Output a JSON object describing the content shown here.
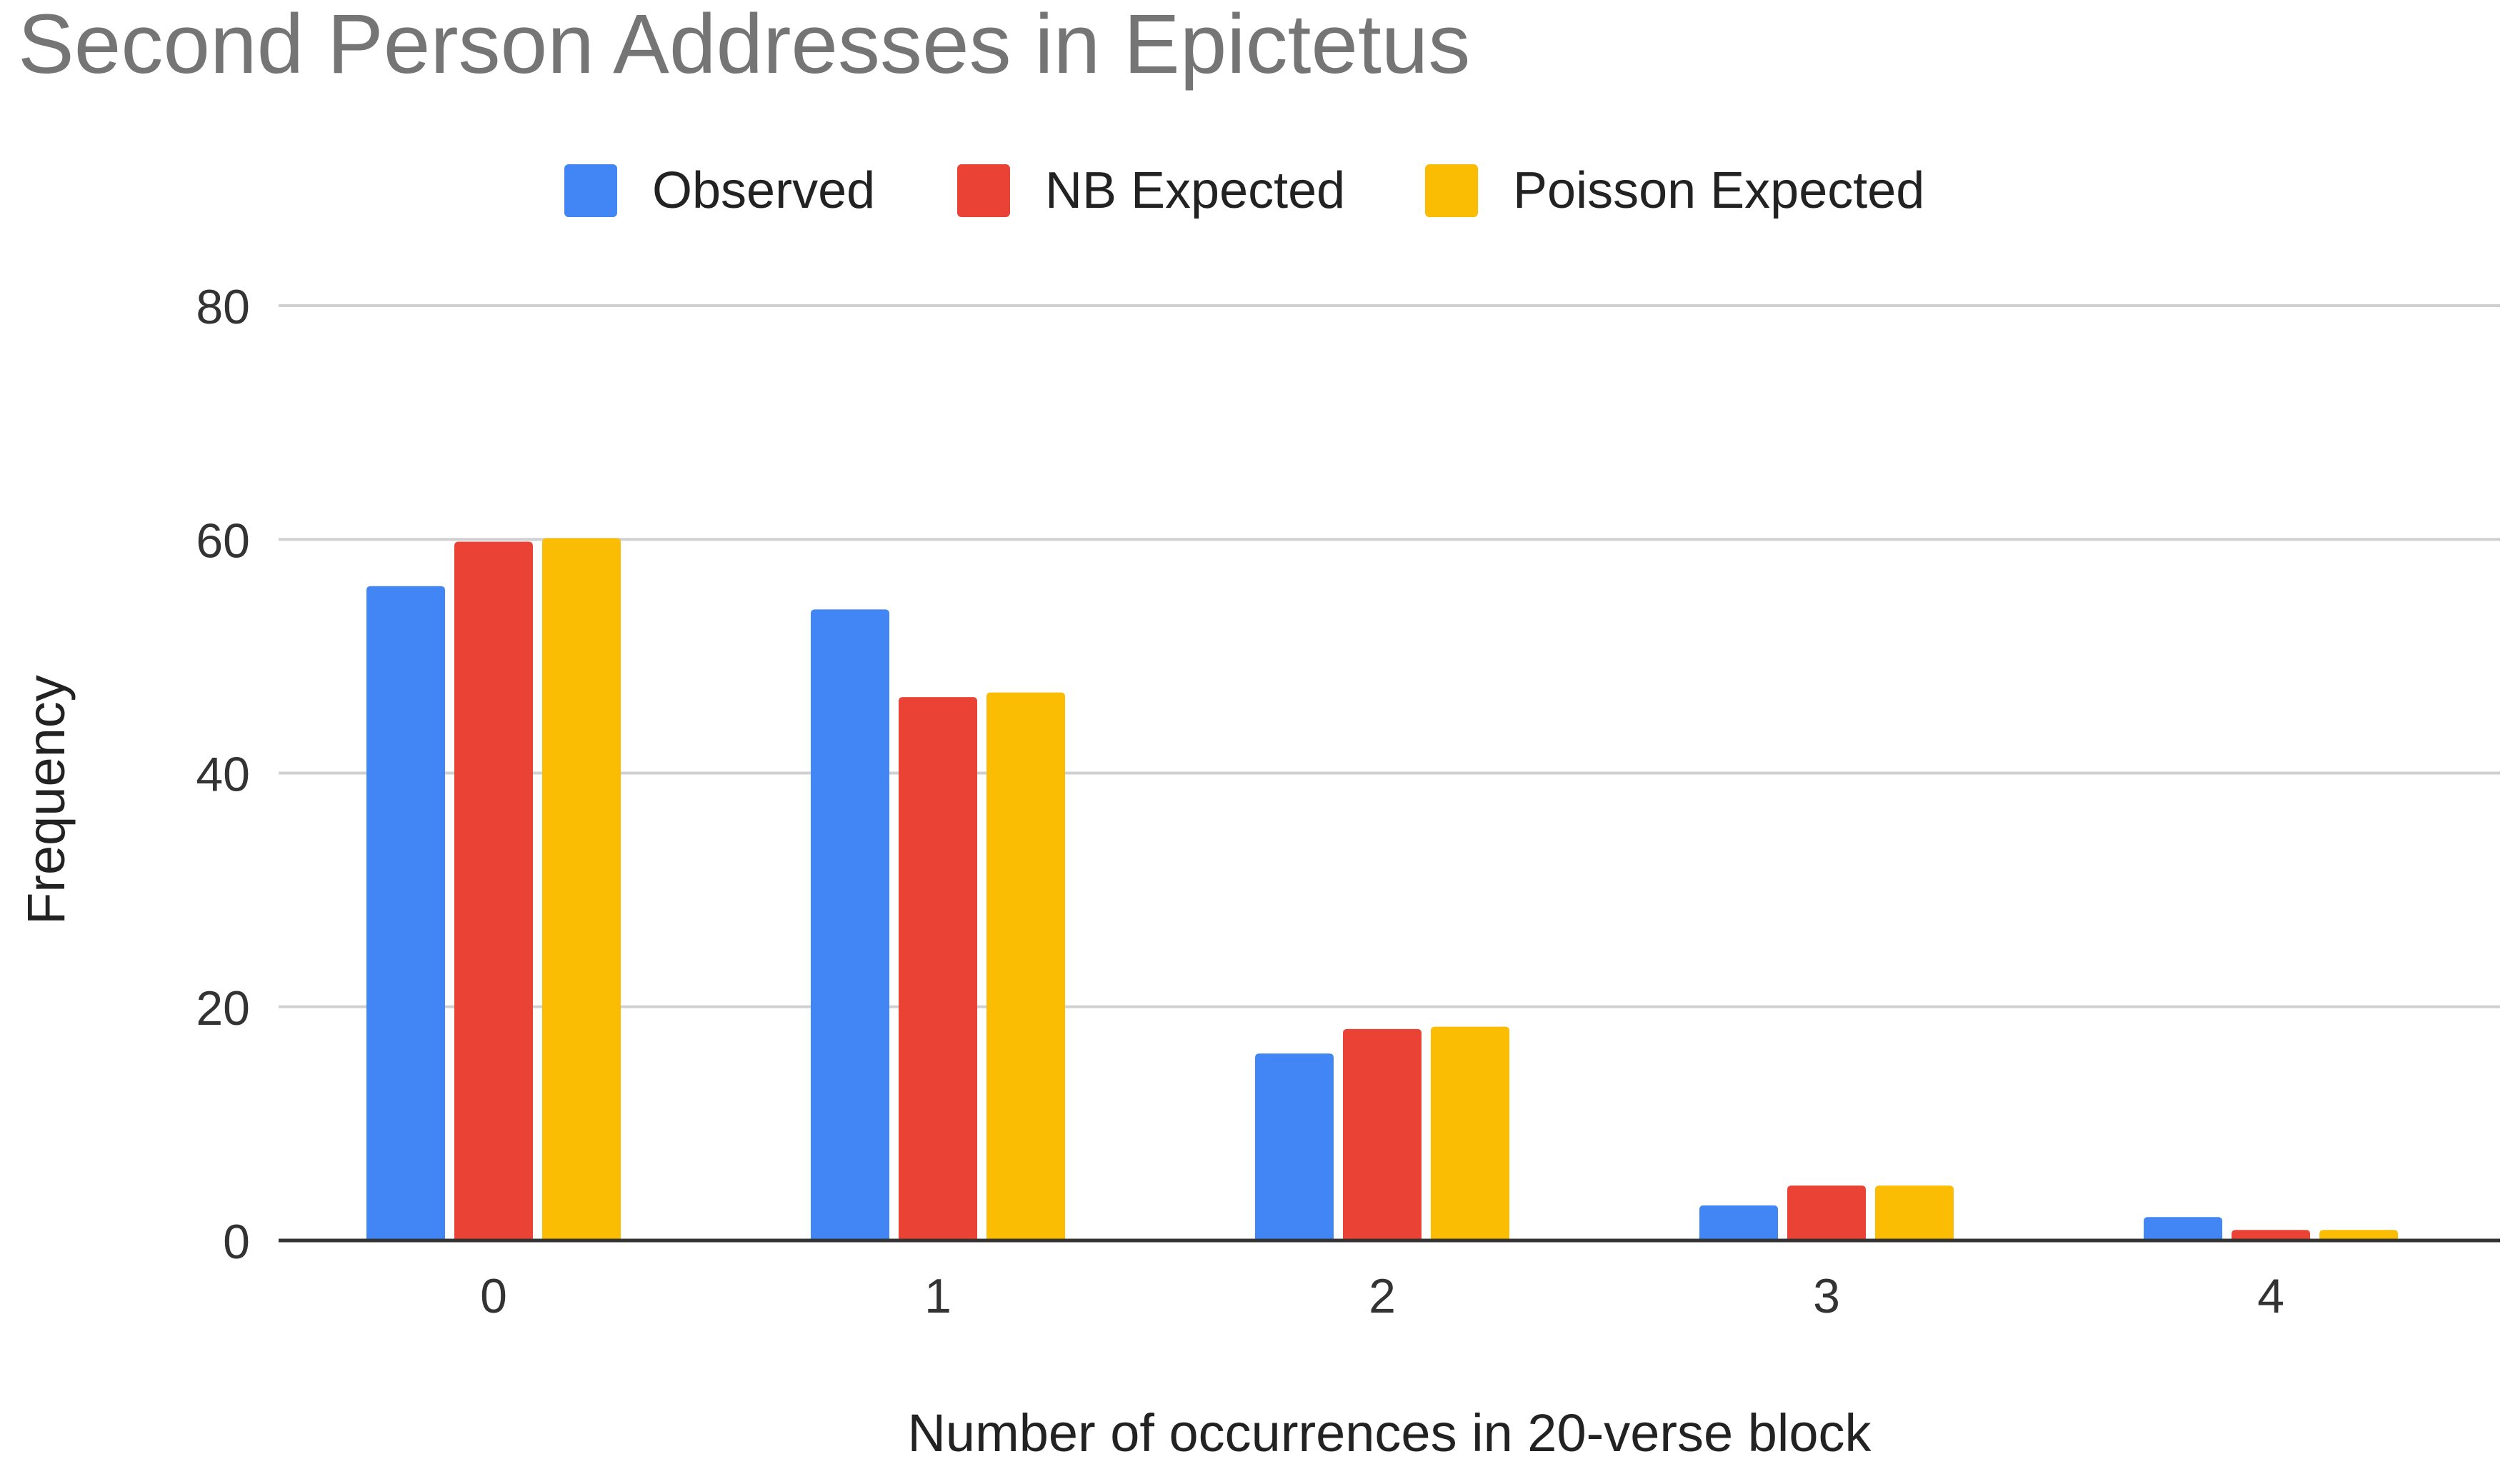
{
  "chart_data": {
    "type": "bar",
    "title": "Second Person Addresses in Epictetus",
    "xlabel": "Number of occurrences in 20-verse block",
    "ylabel": "Frequency",
    "categories": [
      "0",
      "1",
      "2",
      "3",
      "4"
    ],
    "series": [
      {
        "name": "Observed",
        "color": "#4285f4",
        "values": [
          56,
          54,
          16,
          3,
          2
        ]
      },
      {
        "name": "NB Expected",
        "color": "#ea4335",
        "values": [
          59.8,
          46.5,
          18.1,
          4.7,
          0.9
        ]
      },
      {
        "name": "Poisson Expected",
        "color": "#fbbc04",
        "values": [
          60.1,
          46.9,
          18.3,
          4.7,
          0.9
        ]
      }
    ],
    "ylim": [
      0,
      80
    ],
    "yticks": [
      "0",
      "20",
      "40",
      "60",
      "80"
    ],
    "grid": true,
    "legend_position": "top"
  }
}
